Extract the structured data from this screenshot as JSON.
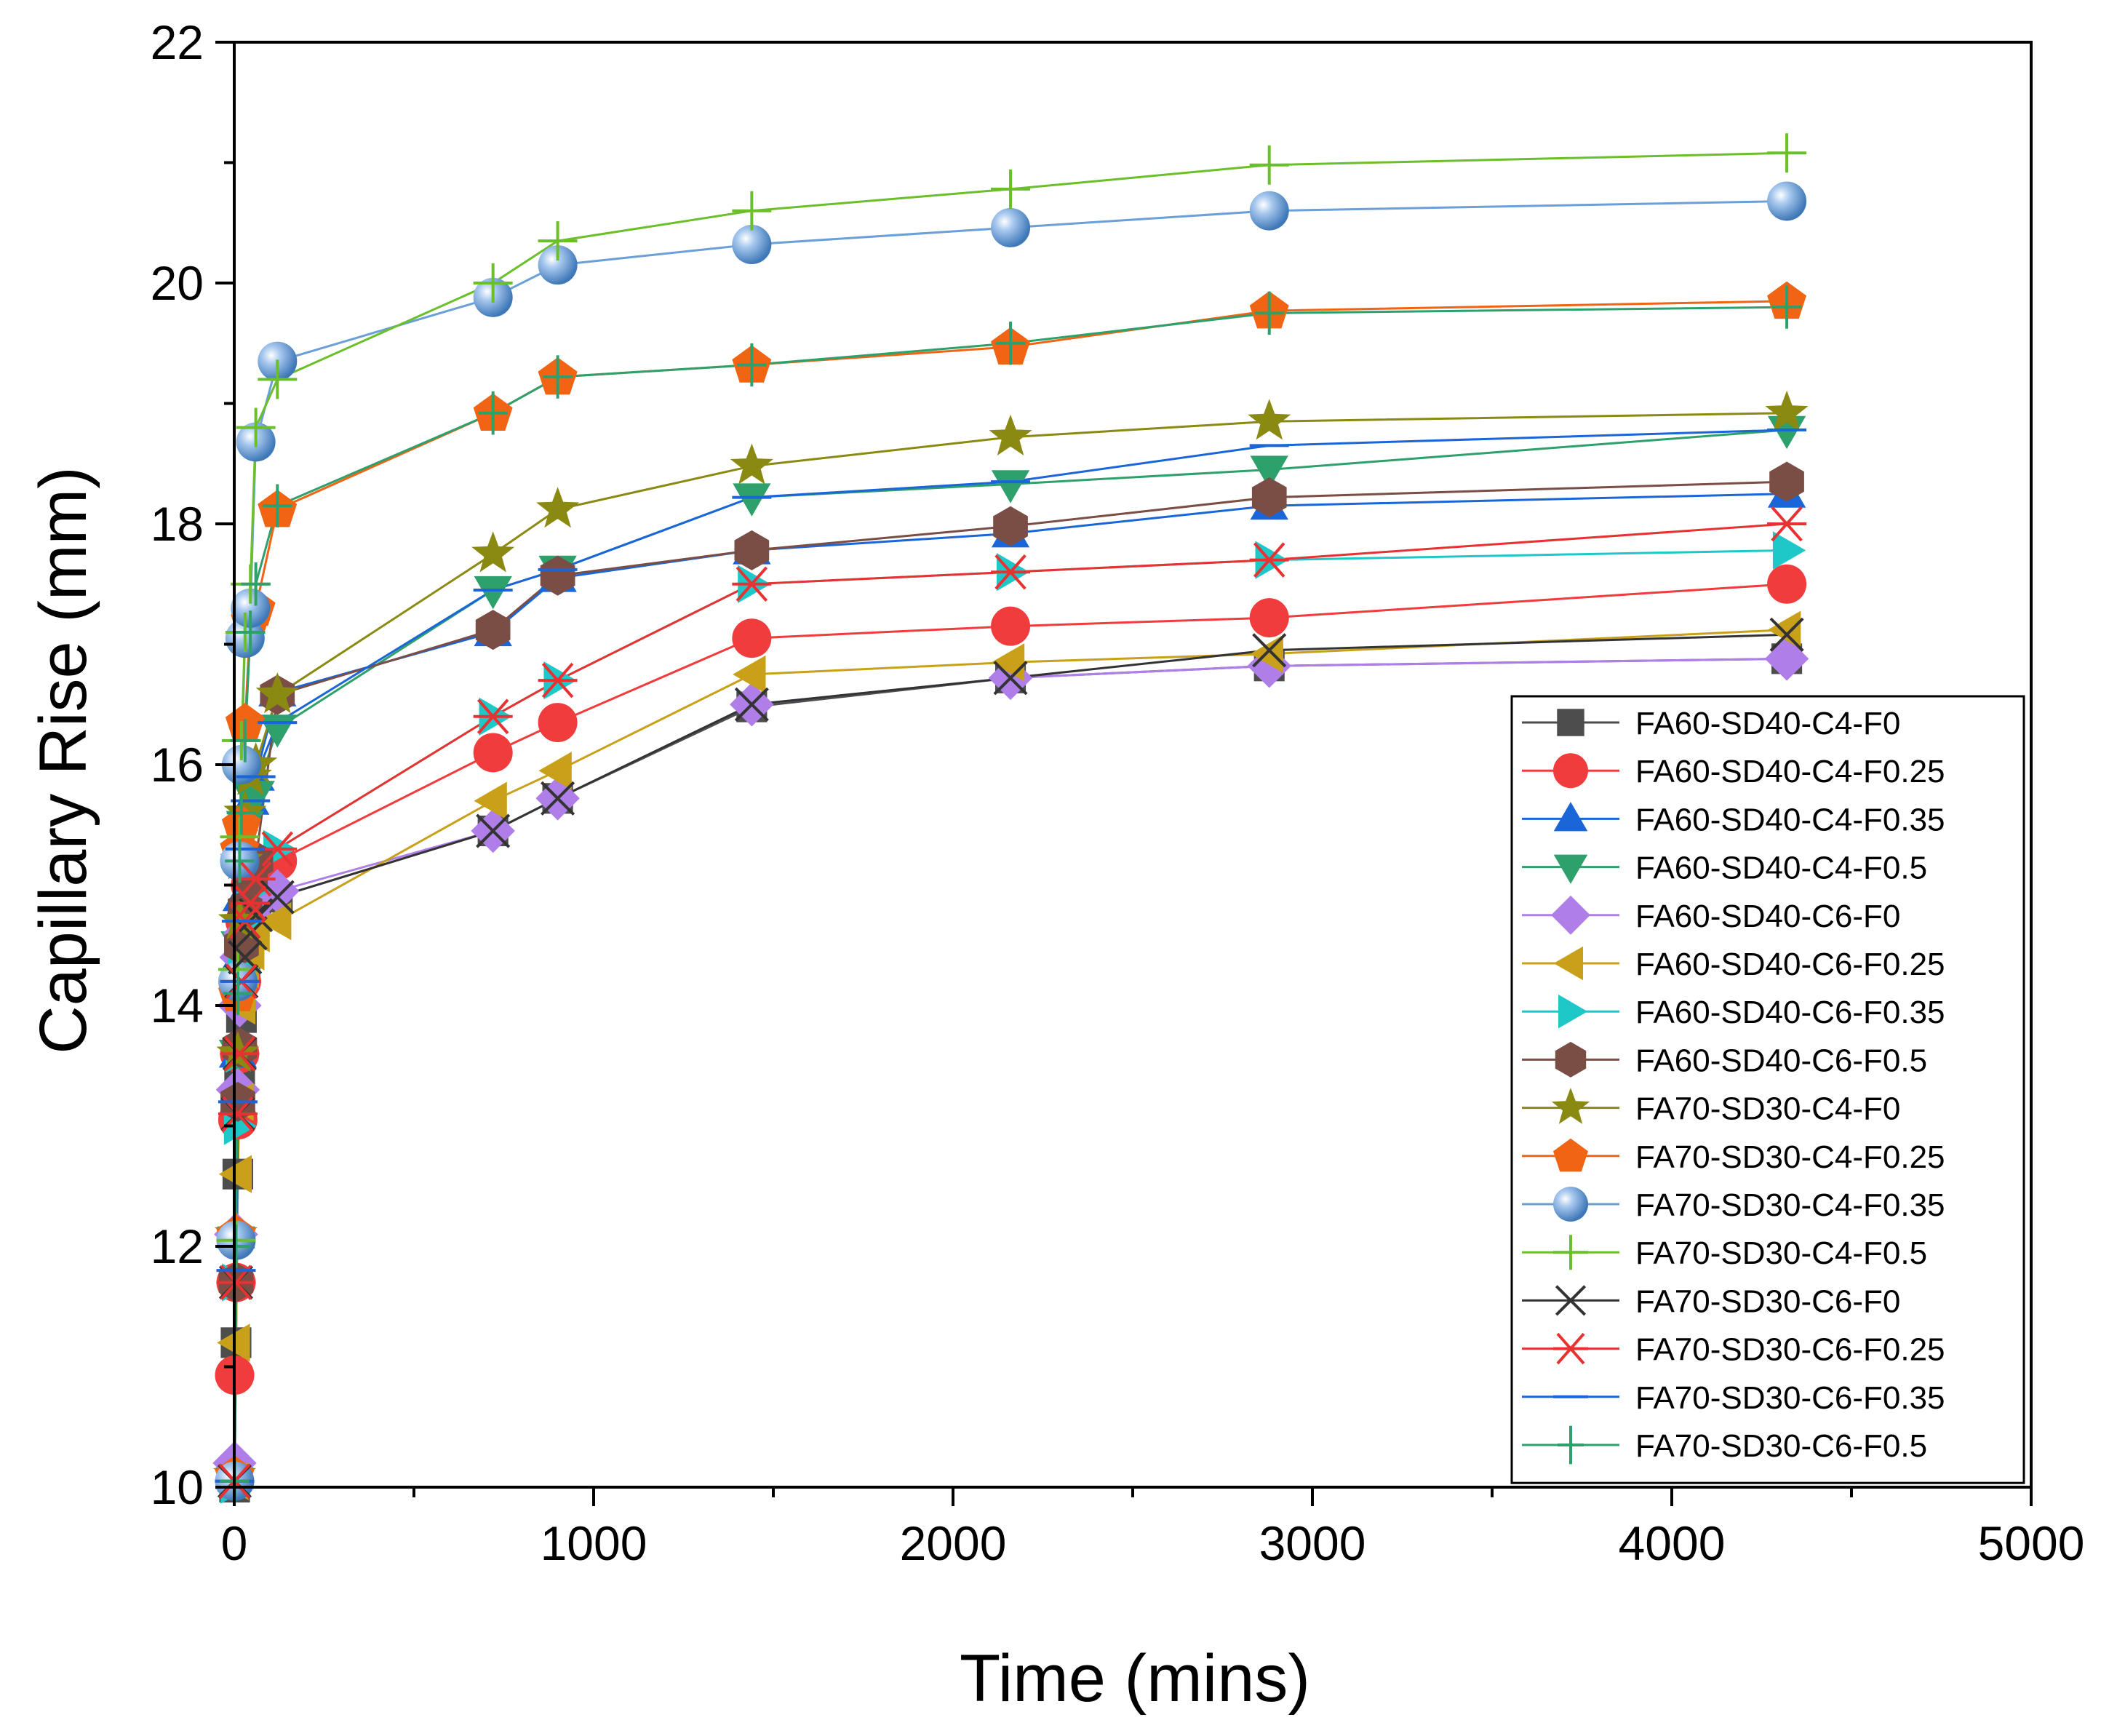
{
  "chart_data": {
    "type": "line",
    "title": "",
    "xlabel": "Time (mins)",
    "ylabel": "Capillary Rise (mm)",
    "xlim": [
      0,
      5000
    ],
    "ylim": [
      10,
      22
    ],
    "x_ticks": [
      0,
      1000,
      2000,
      3000,
      4000,
      5000
    ],
    "y_ticks": [
      10,
      12,
      14,
      16,
      18,
      20,
      22
    ],
    "x_tick_labels": [
      "0",
      "1000",
      "2000",
      "3000",
      "4000",
      "5000"
    ],
    "y_tick_labels": [
      "10",
      "12",
      "14",
      "16",
      "18",
      "20",
      "22"
    ],
    "grid": false,
    "legend_position": "bottom-right",
    "x": [
      1,
      5,
      10,
      15,
      20,
      30,
      45,
      60,
      120,
      720,
      900,
      1440,
      2160,
      2880,
      4320
    ],
    "series": [
      {
        "name": "FA60-SD40-C4-F0",
        "color": "#4d4d4d",
        "marker": "square",
        "values": [
          10.0,
          11.2,
          12.6,
          13.4,
          13.9,
          14.3,
          14.6,
          14.8,
          14.9,
          15.45,
          15.72,
          16.48,
          16.72,
          16.82,
          16.88
        ]
      },
      {
        "name": "FA60-SD40-C4-F0.25",
        "color": "#f03c3c",
        "marker": "circle",
        "values": [
          10.93,
          11.7,
          13.05,
          13.6,
          14.2,
          14.7,
          15.0,
          15.1,
          15.2,
          16.1,
          16.35,
          17.05,
          17.15,
          17.22,
          17.5
        ]
      },
      {
        "name": "FA60-SD40-C4-F0.35",
        "color": "#1a66d9",
        "marker": "triangle-up",
        "values": [
          10.1,
          12.1,
          13.6,
          14.4,
          14.9,
          15.3,
          15.7,
          15.9,
          16.6,
          17.1,
          17.55,
          17.78,
          17.92,
          18.15,
          18.25
        ]
      },
      {
        "name": "FA60-SD40-C4-F0.5",
        "color": "#2ea06b",
        "marker": "triangle-down",
        "values": [
          10.05,
          12.05,
          13.6,
          14.5,
          15.1,
          15.5,
          15.75,
          15.75,
          16.3,
          17.45,
          17.62,
          18.22,
          18.33,
          18.45,
          18.78
        ]
      },
      {
        "name": "FA60-SD40-C6-F0",
        "color": "#b07ee8",
        "marker": "diamond",
        "values": [
          10.2,
          12.1,
          13.3,
          14.0,
          14.4,
          14.6,
          14.75,
          14.85,
          14.95,
          15.45,
          15.72,
          16.5,
          16.72,
          16.82,
          16.88
        ]
      },
      {
        "name": "FA60-SD40-C6-F0.25",
        "color": "#c9a01a",
        "marker": "triangle-left",
        "values": [
          10.05,
          11.2,
          12.6,
          13.2,
          14.0,
          14.3,
          14.45,
          14.6,
          14.7,
          15.7,
          15.95,
          16.75,
          16.85,
          16.92,
          17.12
        ]
      },
      {
        "name": "FA60-SD40-C6-F0.35",
        "color": "#1ec8c8",
        "marker": "triangle-right",
        "values": [
          10.02,
          11.7,
          13.0,
          13.6,
          14.3,
          14.7,
          14.95,
          15.2,
          15.3,
          16.4,
          16.7,
          17.5,
          17.6,
          17.7,
          17.78
        ]
      },
      {
        "name": "FA60-SD40-C6-F0.5",
        "color": "#7a4d45",
        "marker": "hexagon",
        "values": [
          10.05,
          11.7,
          13.2,
          13.65,
          14.5,
          14.8,
          15.05,
          15.2,
          16.58,
          17.12,
          17.57,
          17.78,
          17.98,
          18.22,
          18.35
        ]
      },
      {
        "name": "FA70-SD30-C4-F0",
        "color": "#8a8a12",
        "marker": "star",
        "values": [
          10.1,
          12.1,
          13.6,
          14.7,
          15.2,
          15.6,
          15.9,
          16.0,
          16.58,
          17.75,
          18.12,
          18.48,
          18.72,
          18.85,
          18.92
        ]
      },
      {
        "name": "FA70-SD30-C4-F0.25",
        "color": "#f06414",
        "marker": "pentagon",
        "values": [
          10.1,
          12.1,
          14.1,
          15.3,
          15.5,
          16.35,
          17.2,
          17.3,
          18.12,
          18.92,
          19.22,
          19.32,
          19.47,
          19.77,
          19.85
        ]
      },
      {
        "name": "FA70-SD30-C4-F0.35",
        "color": "#6a9fd8",
        "marker": "sphere",
        "values": [
          10.05,
          12.05,
          14.2,
          15.2,
          16.0,
          17.05,
          17.3,
          18.68,
          19.35,
          19.88,
          20.15,
          20.32,
          20.46,
          20.6,
          20.68
        ]
      },
      {
        "name": "FA70-SD30-C4-F0.5",
        "color": "#6bbf2a",
        "marker": "plus",
        "values": [
          10.05,
          12.05,
          14.3,
          15.4,
          16.2,
          17.1,
          17.5,
          18.8,
          19.2,
          20.0,
          20.35,
          20.6,
          20.78,
          20.98,
          21.08
        ]
      },
      {
        "name": "FA70-SD30-C6-F0",
        "color": "#333333",
        "marker": "x",
        "values": [
          10.05,
          11.7,
          13.1,
          13.6,
          14.2,
          14.4,
          14.6,
          14.75,
          14.9,
          15.45,
          15.72,
          16.5,
          16.72,
          16.95,
          17.08
        ]
      },
      {
        "name": "FA70-SD30-C6-F0.25",
        "color": "#e83232",
        "marker": "asterisk",
        "values": [
          10.05,
          11.7,
          13.1,
          13.6,
          14.2,
          14.7,
          14.85,
          15.05,
          15.3,
          16.4,
          16.7,
          17.5,
          17.6,
          17.7,
          18.0
        ]
      },
      {
        "name": "FA70-SD30-C6-F0.35",
        "color": "#1a66d9",
        "marker": "hline",
        "values": [
          10.05,
          11.8,
          13.2,
          14.2,
          14.7,
          15.3,
          15.7,
          15.9,
          16.35,
          17.45,
          17.62,
          18.22,
          18.35,
          18.65,
          18.78
        ]
      },
      {
        "name": "FA70-SD30-C6-F0.5",
        "color": "#2ea06b",
        "marker": "vplus",
        "values": [
          10.05,
          12.0,
          14.1,
          15.2,
          15.6,
          16.2,
          17.1,
          17.5,
          18.15,
          18.92,
          19.22,
          19.32,
          19.5,
          19.75,
          19.8
        ]
      }
    ]
  }
}
